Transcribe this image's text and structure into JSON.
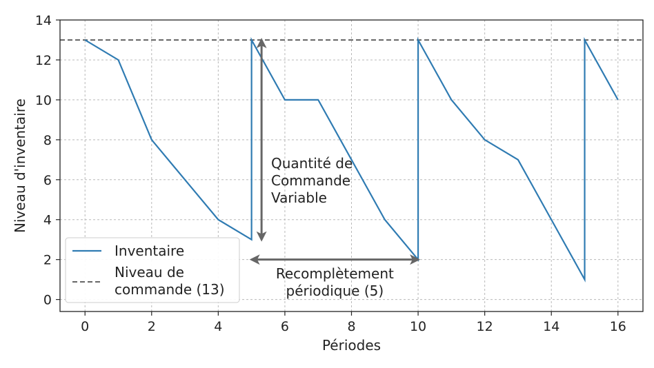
{
  "chart_data": {
    "type": "line",
    "xlabel": "Périodes",
    "ylabel": "Niveau d'inventaire",
    "xlim": [
      -0.75,
      16.75
    ],
    "ylim": [
      -0.6,
      14
    ],
    "xticks": [
      0,
      2,
      4,
      6,
      8,
      10,
      12,
      14,
      16
    ],
    "yticks": [
      0,
      2,
      4,
      6,
      8,
      10,
      12,
      14
    ],
    "grid": true,
    "legend_position": "bottom-left",
    "series": [
      {
        "name": "Inventaire",
        "color": "#2f7bb2",
        "points": [
          [
            0,
            13
          ],
          [
            1,
            12
          ],
          [
            2,
            8
          ],
          [
            3,
            6
          ],
          [
            4,
            4
          ],
          [
            5,
            3
          ],
          [
            5,
            13
          ],
          [
            6,
            10
          ],
          [
            7,
            10
          ],
          [
            8,
            7
          ],
          [
            9,
            4
          ],
          [
            10,
            2
          ],
          [
            10,
            13
          ],
          [
            11,
            10
          ],
          [
            12,
            8
          ],
          [
            13,
            7
          ],
          [
            14,
            4
          ],
          [
            15,
            1
          ],
          [
            15,
            13
          ],
          [
            16,
            10
          ]
        ]
      },
      {
        "name": "Niveau de commande (13)",
        "color": "#666666",
        "style": "dashed",
        "y": 13
      }
    ],
    "annotations": [
      {
        "text_lines": [
          "Quantité de",
          "Commande",
          "Variable"
        ],
        "arrow": "vertical",
        "x": 5.3,
        "y_from": 3,
        "y_to": 13
      },
      {
        "text_lines": [
          "Recomplètement",
          "périodique (5)"
        ],
        "arrow": "horizontal",
        "y": 2,
        "x_from": 5,
        "x_to": 10
      }
    ]
  }
}
